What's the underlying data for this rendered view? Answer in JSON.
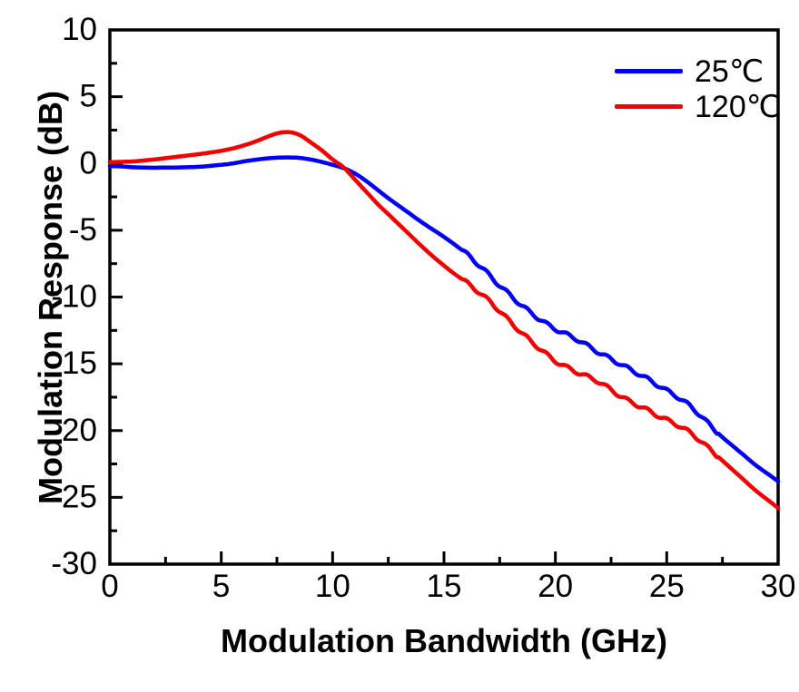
{
  "figure": {
    "background": "#ffffff",
    "axis_color": "#000000",
    "text_color": "#000000"
  },
  "chart_data": {
    "type": "line",
    "title": "",
    "xlabel": "Modulation Bandwidth (GHz)",
    "ylabel": "Modulation Response (dB)",
    "xlim": [
      0,
      30
    ],
    "ylim": [
      -30,
      10
    ],
    "x_major_ticks": [
      0,
      5,
      10,
      15,
      20,
      25,
      30
    ],
    "x_minor_step": 2.5,
    "y_major_ticks": [
      10,
      5,
      0,
      -5,
      -10,
      -15,
      -20,
      -25,
      -30
    ],
    "y_minor_step": 2.5,
    "grid": false,
    "frame": "full-box",
    "tick_direction": "in",
    "legend_position": "top-right",
    "legend_frame": false,
    "x_start": 0,
    "x_step": 0.5,
    "series": [
      {
        "id": "curve-25c",
        "name": "25℃",
        "color": "#0000f2",
        "y": [
          -0.2,
          -0.22,
          -0.28,
          -0.3,
          -0.32,
          -0.3,
          -0.3,
          -0.28,
          -0.25,
          -0.18,
          -0.1,
          0.0,
          0.15,
          0.27,
          0.37,
          0.43,
          0.45,
          0.42,
          0.3,
          0.12,
          -0.1,
          -0.35,
          -0.75,
          -1.3,
          -1.95,
          -2.6,
          -3.2,
          -3.8,
          -4.4,
          -4.95,
          -5.5,
          -6.1,
          -6.75,
          -7.5,
          -8.3,
          -9.15,
          -9.9,
          -10.65,
          -11.3,
          -11.9,
          -12.4,
          -12.8,
          -13.2,
          -13.7,
          -14.2,
          -14.65,
          -15.1,
          -15.55,
          -16.0,
          -16.5,
          -17.0,
          -17.5,
          -18.1,
          -18.85,
          -19.7,
          -20.5,
          -21.2,
          -21.9,
          -22.6,
          -23.2,
          -23.8
        ]
      },
      {
        "id": "curve-120c",
        "name": "120℃",
        "color": "#f20000",
        "y": [
          0.1,
          0.12,
          0.15,
          0.22,
          0.3,
          0.4,
          0.5,
          0.6,
          0.7,
          0.82,
          0.95,
          1.12,
          1.35,
          1.62,
          1.95,
          2.25,
          2.35,
          2.15,
          1.6,
          1.0,
          0.3,
          -0.3,
          -1.2,
          -2.1,
          -3.0,
          -3.8,
          -4.6,
          -5.4,
          -6.2,
          -6.95,
          -7.65,
          -8.3,
          -8.9,
          -9.55,
          -10.25,
          -11.05,
          -11.9,
          -12.7,
          -13.45,
          -14.15,
          -14.8,
          -15.25,
          -15.65,
          -16.0,
          -16.4,
          -16.95,
          -17.5,
          -17.95,
          -18.35,
          -18.8,
          -19.2,
          -19.6,
          -20.1,
          -20.75,
          -21.5,
          -22.25,
          -23.0,
          -23.75,
          -24.5,
          -25.15,
          -25.8
        ]
      }
    ],
    "ripple": {
      "start_ghz": 15.8,
      "end_ghz": 27.3,
      "amplitude_db": 0.13,
      "period_ghz": 0.9
    }
  }
}
